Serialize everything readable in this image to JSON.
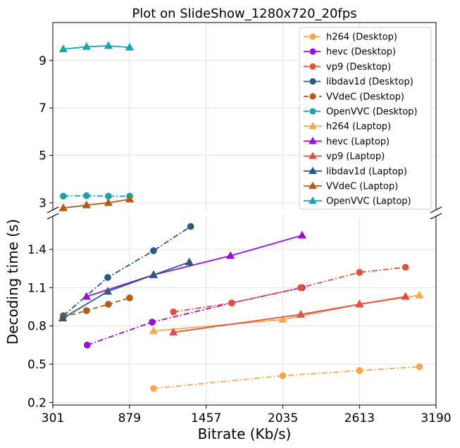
{
  "chart_data": {
    "type": "line",
    "title": "Plot on SlideShow_1280x720_20fps",
    "xlabel": "Bitrate (Kb/s)",
    "ylabel": "Decoding time (s)",
    "grid": true,
    "legend_position": "top-right",
    "broken_y_axis": true,
    "xlim": [
      301,
      3190
    ],
    "x_ticks": [
      "301",
      "879",
      "1457",
      "2035",
      "2613",
      "3190"
    ],
    "upper_ylim": [
      2.7,
      10.6
    ],
    "upper_y_ticks": [
      "3",
      "5",
      "7",
      "9"
    ],
    "lower_ylim": [
      0.18,
      1.66
    ],
    "lower_y_ticks": [
      "0.2",
      "0.5",
      "0.8",
      "1.1",
      "1.4"
    ],
    "series": [
      {
        "name": "h264 (Desktop)",
        "color": "#f5a94a",
        "marker": "circle",
        "dash": "dashdot",
        "x": [
          1060,
          2035,
          2613,
          3065
        ],
        "y": [
          0.31,
          0.41,
          0.45,
          0.48
        ]
      },
      {
        "name": "hevc (Desktop)",
        "color": "#9a0edb",
        "marker": "circle",
        "dash": "dashdot",
        "x": [
          560,
          1050,
          1650,
          2180
        ],
        "y": [
          0.65,
          0.83,
          0.98,
          1.1
        ]
      },
      {
        "name": "vp9 (Desktop)",
        "color": "#e0513f",
        "marker": "circle",
        "dash": "dashdot",
        "x": [
          1210,
          1650,
          2170,
          2613,
          2960
        ],
        "y": [
          0.91,
          0.98,
          1.1,
          1.22,
          1.26
        ]
      },
      {
        "name": "libdav1d (Desktop)",
        "color": "#2a5a80",
        "marker": "circle",
        "dash": "dashdot",
        "x": [
          380,
          715,
          1060,
          1340
        ],
        "y": [
          0.88,
          1.18,
          1.39,
          1.58
        ]
      },
      {
        "name": "VVdeC (Desktop)",
        "color": "#b05d1a",
        "marker": "circle",
        "dash": "dashed",
        "x": [
          380,
          555,
          720,
          880
        ],
        "y": [
          0.87,
          0.92,
          0.97,
          1.02
        ]
      },
      {
        "name": "OpenVVC (Desktop)",
        "color": "#19a4b0",
        "marker": "circle",
        "dash": "dashdot",
        "x": [
          380,
          555,
          720,
          880
        ],
        "y": [
          3.28,
          3.3,
          3.28,
          3.28
        ]
      },
      {
        "name": "h264 (Laptop)",
        "color": "#f5a94a",
        "marker": "triangle",
        "dash": "solid",
        "x": [
          1060,
          2035,
          2613,
          3065
        ],
        "y": [
          0.76,
          0.85,
          0.97,
          1.04
        ]
      },
      {
        "name": "hevc (Laptop)",
        "color": "#9a0edb",
        "marker": "triangle",
        "dash": "solid",
        "x": [
          555,
          1060,
          1640,
          2180
        ],
        "y": [
          1.03,
          1.2,
          1.35,
          1.51
        ]
      },
      {
        "name": "vp9 (Laptop)",
        "color": "#e0513f",
        "marker": "triangle",
        "dash": "solid",
        "x": [
          1210,
          2170,
          2613,
          2960
        ],
        "y": [
          0.75,
          0.89,
          0.97,
          1.03
        ]
      },
      {
        "name": "libdav1d (Laptop)",
        "color": "#2a5a80",
        "marker": "triangle",
        "dash": "solid",
        "x": [
          375,
          715,
          1060,
          1330
        ],
        "y": [
          0.86,
          1.07,
          1.2,
          1.3
        ]
      },
      {
        "name": "VVdeC (Laptop)",
        "color": "#b05d1a",
        "marker": "triangle",
        "dash": "solid",
        "x": [
          380,
          555,
          720,
          880
        ],
        "y": [
          2.78,
          2.9,
          3.0,
          3.15
        ]
      },
      {
        "name": "OpenVVC (Laptop)",
        "color": "#19a4b0",
        "marker": "triangle",
        "dash": "solid",
        "x": [
          380,
          555,
          720,
          880
        ],
        "y": [
          9.48,
          9.58,
          9.62,
          9.55
        ]
      }
    ]
  }
}
